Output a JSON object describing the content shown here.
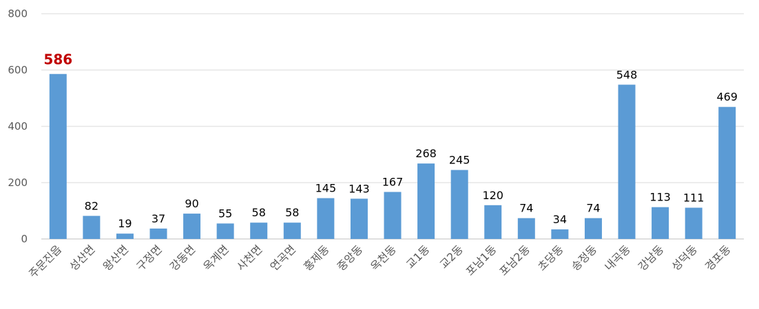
{
  "chart_data": {
    "type": "bar",
    "categories": [
      "주문진읍",
      "성산면",
      "왕산면",
      "구정면",
      "강동면",
      "옥계면",
      "사천면",
      "연곡면",
      "홍제동",
      "중앙동",
      "옥천동",
      "교1동",
      "교2동",
      "포남1동",
      "포남2동",
      "초당동",
      "송정동",
      "내곡동",
      "강남동",
      "성덕동",
      "경포동"
    ],
    "series": [
      {
        "values": [
          586,
          82,
          19,
          37,
          90,
          55,
          58,
          58,
          145,
          143,
          167,
          268,
          245,
          120,
          74,
          34,
          74,
          548,
          113,
          111,
          469
        ]
      }
    ],
    "ylim": [
      0,
      800
    ],
    "yticks": [
      0,
      200,
      400,
      600,
      800
    ],
    "grid": true,
    "highlight_index": 0,
    "colors": {
      "bar": "#5b9bd5",
      "highlight_label": "#c00000",
      "label": "#000000"
    }
  }
}
